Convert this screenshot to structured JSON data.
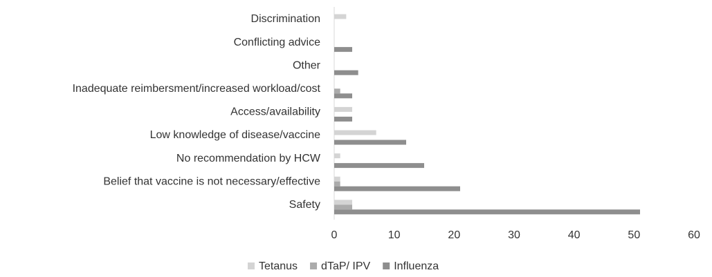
{
  "chart_data": {
    "type": "bar",
    "orientation": "horizontal",
    "categories": [
      "Discrimination",
      "Conflicting advice",
      "Other",
      "Inadequate reimbersment/increased workload/cost",
      "Access/availability",
      "Low knowledge of disease/vaccine",
      "No recommendation by HCW",
      "Belief that vaccine is not necessary/effective",
      "Safety"
    ],
    "series": [
      {
        "name": "Tetanus",
        "color": "#d4d4d4",
        "values": [
          2,
          0,
          0,
          0,
          3,
          7,
          1,
          1,
          3
        ]
      },
      {
        "name": "dTaP/ IPV",
        "color": "#ababab",
        "values": [
          0,
          0,
          0,
          1,
          0,
          0,
          0,
          1,
          3
        ]
      },
      {
        "name": "Influenza",
        "color": "#8e8e8e",
        "values": [
          0,
          3,
          4,
          3,
          3,
          12,
          15,
          21,
          51
        ]
      }
    ],
    "xlim": [
      0,
      60
    ],
    "xticks": [
      0,
      10,
      20,
      30,
      40,
      50,
      60
    ],
    "legend": "bottom"
  }
}
